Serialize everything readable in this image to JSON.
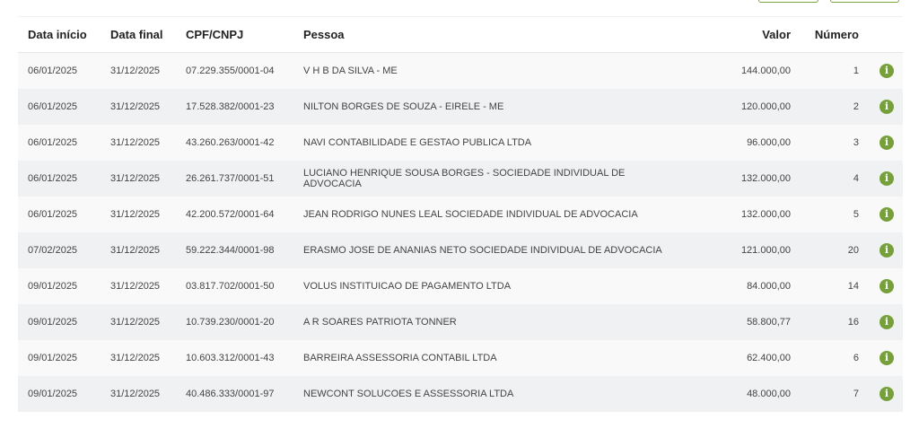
{
  "colors": {
    "accent": "#76a13a"
  },
  "table": {
    "headers": {
      "start": "Data início",
      "end": "Data final",
      "doc": "CPF/CNPJ",
      "person": "Pessoa",
      "value": "Valor",
      "number": "Número"
    },
    "rows": [
      {
        "start": "06/01/2025",
        "end": "31/12/2025",
        "doc": "07.229.355/0001-04",
        "person": "V H B DA SILVA - ME",
        "value": "144.000,00",
        "number": "1",
        "icon": "info-icon"
      },
      {
        "start": "06/01/2025",
        "end": "31/12/2025",
        "doc": "17.528.382/0001-23",
        "person": "NILTON BORGES DE SOUZA - EIRELE - ME",
        "value": "120.000,00",
        "number": "2",
        "icon": "info-icon"
      },
      {
        "start": "06/01/2025",
        "end": "31/12/2025",
        "doc": "43.260.263/0001-42",
        "person": "NAVI CONTABILIDADE E GESTAO PUBLICA LTDA",
        "value": "96.000,00",
        "number": "3",
        "icon": "info-icon"
      },
      {
        "start": "06/01/2025",
        "end": "31/12/2025",
        "doc": "26.261.737/0001-51",
        "person": "LUCIANO HENRIQUE SOUSA BORGES - SOCIEDADE INDIVIDUAL DE ADVOCACIA",
        "value": "132.000,00",
        "number": "4",
        "icon": "info-icon"
      },
      {
        "start": "06/01/2025",
        "end": "31/12/2025",
        "doc": "42.200.572/0001-64",
        "person": "JEAN RODRIGO NUNES LEAL SOCIEDADE INDIVIDUAL DE ADVOCACIA",
        "value": "132.000,00",
        "number": "5",
        "icon": "info-icon"
      },
      {
        "start": "07/02/2025",
        "end": "31/12/2025",
        "doc": "59.222.344/0001-98",
        "person": "ERASMO JOSE DE ANANIAS NETO SOCIEDADE INDIVIDUAL DE ADVOCACIA",
        "value": "121.000,00",
        "number": "20",
        "icon": "info-icon"
      },
      {
        "start": "09/01/2025",
        "end": "31/12/2025",
        "doc": "03.817.702/0001-50",
        "person": "VOLUS INSTITUICAO DE PAGAMENTO LTDA",
        "value": "84.000,00",
        "number": "14",
        "icon": "info-icon"
      },
      {
        "start": "09/01/2025",
        "end": "31/12/2025",
        "doc": "10.739.230/0001-20",
        "person": "A R SOARES PATRIOTA TONNER",
        "value": "58.800,77",
        "number": "16",
        "icon": "info-icon"
      },
      {
        "start": "09/01/2025",
        "end": "31/12/2025",
        "doc": "10.603.312/0001-43",
        "person": "BARREIRA ASSESSORIA CONTABIL LTDA",
        "value": "62.400,00",
        "number": "6",
        "icon": "info-icon"
      },
      {
        "start": "09/01/2025",
        "end": "31/12/2025",
        "doc": "40.486.333/0001-97",
        "person": "NEWCONT SOLUCOES E ASSESSORIA LTDA",
        "value": "48.000,00",
        "number": "7",
        "icon": "info-icon"
      }
    ]
  }
}
